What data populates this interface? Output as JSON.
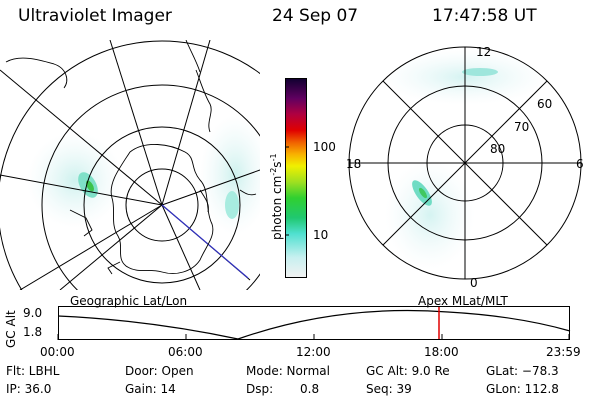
{
  "header": {
    "title": "Ultraviolet Imager",
    "date": "24 Sep 07",
    "time": "17:47:58 UT"
  },
  "colorbar": {
    "unit": "photon cm",
    "unit_sup1": "-2",
    "unit_mid": "s",
    "unit_sup2": "-1",
    "ticks": [
      "100",
      "10"
    ]
  },
  "left_map": {
    "label": "Geographic Lat/Lon"
  },
  "right_map": {
    "label": "Apex MLat/MLT",
    "mlt_labels": {
      "top": "12",
      "left": "18",
      "right": "6",
      "bottom": "0"
    },
    "lat_labels": [
      "60",
      "70",
      "80"
    ]
  },
  "altitude_plot": {
    "ylabel": "GC Alt",
    "yticks": [
      "9.0",
      "1.8"
    ],
    "xticks": [
      "00:00",
      "06:00",
      "12:00",
      "18:00",
      "23:59"
    ],
    "marker_color": "#e00000"
  },
  "status": {
    "flt": "Flt: LBHL",
    "door": "Door: Open",
    "mode": "Mode: Normal",
    "gc_alt": "GC Alt: 9.0 Re",
    "glat": "GLat: −78.3",
    "ip": "IP: 36.0",
    "gain": "Gain: 14",
    "dsp_label": "Dsp:",
    "dsp_value": "0.8",
    "seq": "Seq: 39",
    "glon": "GLon: 112.8"
  }
}
